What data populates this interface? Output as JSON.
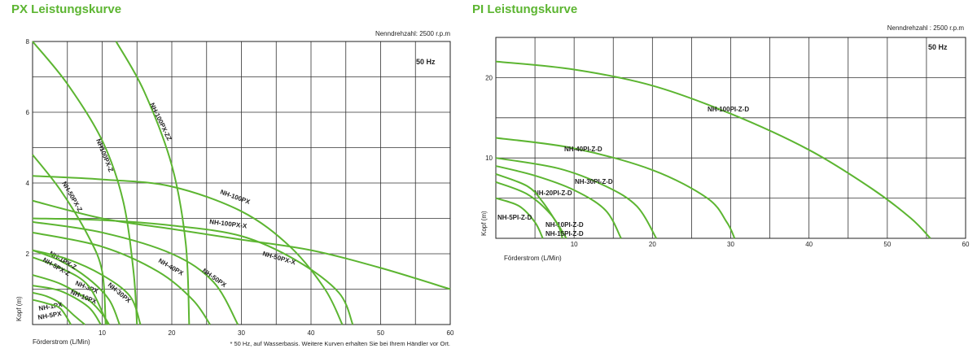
{
  "chart_data": [
    {
      "type": "line",
      "title": "PX Leistungskurve",
      "rpm_note": "Nenndrehzahl: 2500 r.p.m",
      "hz_label": "50 Hz",
      "xlabel": "Förderstrom (L/Min)",
      "ylabel": "Kopf (m)",
      "footnote": "* 50 Hz, auf Wasserbasis. Weitere Kurven erhalten Sie bei Ihrem Händler vor Ort.",
      "xlim": [
        0,
        60
      ],
      "ylim": [
        0,
        8
      ],
      "x_ticks": [
        10,
        20,
        30,
        40,
        50,
        60
      ],
      "y_ticks": [
        2,
        4,
        6,
        8
      ],
      "grid": true,
      "line_color": "#5cb531",
      "series": [
        {
          "name": "NH-1PX",
          "points": [
            [
              0,
              0.9
            ],
            [
              2,
              0.8
            ],
            [
              4,
              0.6
            ],
            [
              6,
              0.25
            ],
            [
              7.5,
              0
            ]
          ]
        },
        {
          "name": "NH-5PX",
          "points": [
            [
              0,
              0.7
            ],
            [
              2,
              0.6
            ],
            [
              4,
              0.45
            ],
            [
              5.5,
              0
            ]
          ]
        },
        {
          "name": "NH-3PX",
          "points": [
            [
              0,
              1.4
            ],
            [
              4,
              1.15
            ],
            [
              8,
              0.7
            ],
            [
              10,
              0.3
            ],
            [
              11,
              0
            ]
          ]
        },
        {
          "name": "NH-10PX",
          "points": [
            [
              0,
              1.1
            ],
            [
              4,
              0.95
            ],
            [
              8,
              0.5
            ],
            [
              9.8,
              0
            ]
          ]
        },
        {
          "name": "NH-1PX-Z",
          "points": [
            [
              0,
              2.1
            ],
            [
              4,
              1.8
            ],
            [
              8,
              1.3
            ],
            [
              11,
              0.7
            ],
            [
              12.5,
              0
            ]
          ]
        },
        {
          "name": "NH-5PX-Z",
          "points": [
            [
              0,
              1.9
            ],
            [
              4,
              1.6
            ],
            [
              8,
              1.1
            ],
            [
              10.8,
              0
            ]
          ]
        },
        {
          "name": "NH-30PX",
          "points": [
            [
              0,
              2.1
            ],
            [
              5,
              1.85
            ],
            [
              10,
              1.4
            ],
            [
              14,
              0.8
            ],
            [
              15.5,
              0
            ]
          ]
        },
        {
          "name": "NH-40PX",
          "points": [
            [
              0,
              2.6
            ],
            [
              10,
              2.2
            ],
            [
              18,
              1.5
            ],
            [
              23,
              0.7
            ],
            [
              25.5,
              0
            ]
          ]
        },
        {
          "name": "NH-50PX",
          "points": [
            [
              0,
              2.9
            ],
            [
              10,
              2.6
            ],
            [
              20,
              2.0
            ],
            [
              26,
              1.2
            ],
            [
              29.5,
              0
            ]
          ]
        },
        {
          "name": "NH-50PX-Z",
          "points": [
            [
              0,
              4.8
            ],
            [
              4,
              3.8
            ],
            [
              8,
              2.5
            ],
            [
              10,
              1.5
            ],
            [
              10.5,
              0
            ]
          ]
        },
        {
          "name": "NH100PX-Z",
          "points": [
            [
              0,
              8.0
            ],
            [
              5,
              6.8
            ],
            [
              10,
              5.2
            ],
            [
              13,
              3.5
            ],
            [
              14.5,
              1.5
            ],
            [
              15,
              0
            ]
          ]
        },
        {
          "name": "NH-100PX-ZZ",
          "points": [
            [
              12,
              8.0
            ],
            [
              16,
              6.6
            ],
            [
              20,
              4.5
            ],
            [
              22,
              2.3
            ],
            [
              22.5,
              0
            ]
          ]
        },
        {
          "name": "NH-100PX",
          "points": [
            [
              0,
              4.2
            ],
            [
              10,
              4.1
            ],
            [
              20,
              3.9
            ],
            [
              30,
              3.2
            ],
            [
              37,
              2.2
            ],
            [
              42,
              1.0
            ],
            [
              44.5,
              0
            ]
          ]
        },
        {
          "name": "NH-100PX-X",
          "points": [
            [
              0,
              3.0
            ],
            [
              10,
              2.95
            ],
            [
              20,
              2.8
            ],
            [
              30,
              2.5
            ],
            [
              38,
              1.8
            ],
            [
              44,
              0.9
            ],
            [
              46,
              0
            ]
          ]
        },
        {
          "name": "NH-50PX-X",
          "points": [
            [
              0,
              3.5
            ],
            [
              10,
              3.0
            ],
            [
              20,
              2.7
            ],
            [
              30,
              2.4
            ],
            [
              40,
              2.1
            ],
            [
              50,
              1.6
            ],
            [
              60,
              1.0
            ]
          ]
        }
      ]
    },
    {
      "type": "line",
      "title": "PI Leistungskurve",
      "rpm_note": "Nenndrehzahl : 2500 r.p.m",
      "hz_label": "50 Hz",
      "xlabel": "Förderstrom (L/Min)",
      "ylabel": "Kopf (m)",
      "xlim": [
        0,
        60
      ],
      "ylim": [
        0,
        25
      ],
      "x_ticks": [
        10,
        20,
        30,
        40,
        50,
        60
      ],
      "y_ticks": [
        10,
        20
      ],
      "grid": true,
      "line_color": "#5cb531",
      "series": [
        {
          "name": "NH-100PI-Z-D",
          "points": [
            [
              0,
              22.0
            ],
            [
              10,
              21.0
            ],
            [
              20,
              19.0
            ],
            [
              30,
              15.5
            ],
            [
              40,
              11.0
            ],
            [
              48,
              6.2
            ],
            [
              53,
              2.5
            ],
            [
              55.5,
              0
            ]
          ]
        },
        {
          "name": "NH-40PI-Z-D",
          "points": [
            [
              0,
              12.5
            ],
            [
              10,
              11.2
            ],
            [
              20,
              8.5
            ],
            [
              27,
              5.0
            ],
            [
              29.5,
              2.0
            ],
            [
              30.5,
              0
            ]
          ]
        },
        {
          "name": "NH-30PI-Z-D",
          "points": [
            [
              0,
              10.0
            ],
            [
              8,
              8.7
            ],
            [
              14,
              6.5
            ],
            [
              18,
              4.0
            ],
            [
              20.5,
              0
            ]
          ]
        },
        {
          "name": "NH-20PI-Z-D",
          "points": [
            [
              0,
              9.0
            ],
            [
              5,
              7.8
            ],
            [
              10,
              6.0
            ],
            [
              14,
              3.5
            ],
            [
              16,
              0
            ]
          ]
        },
        {
          "name": "NH-10PI-Z-D",
          "points": [
            [
              0,
              8.0
            ],
            [
              4,
              6.5
            ],
            [
              6,
              4.5
            ],
            [
              8,
              1.5
            ],
            [
              8.5,
              0
            ]
          ]
        },
        {
          "name": "NH-15PI-Z-D",
          "points": [
            [
              0,
              7.0
            ],
            [
              4,
              5.5
            ],
            [
              7,
              3.0
            ],
            [
              9,
              0
            ]
          ]
        },
        {
          "name": "NH-5PI-Z-D",
          "points": [
            [
              0,
              5.0
            ],
            [
              3,
              4.0
            ],
            [
              5,
              2.0
            ],
            [
              6,
              0
            ]
          ]
        }
      ]
    }
  ]
}
